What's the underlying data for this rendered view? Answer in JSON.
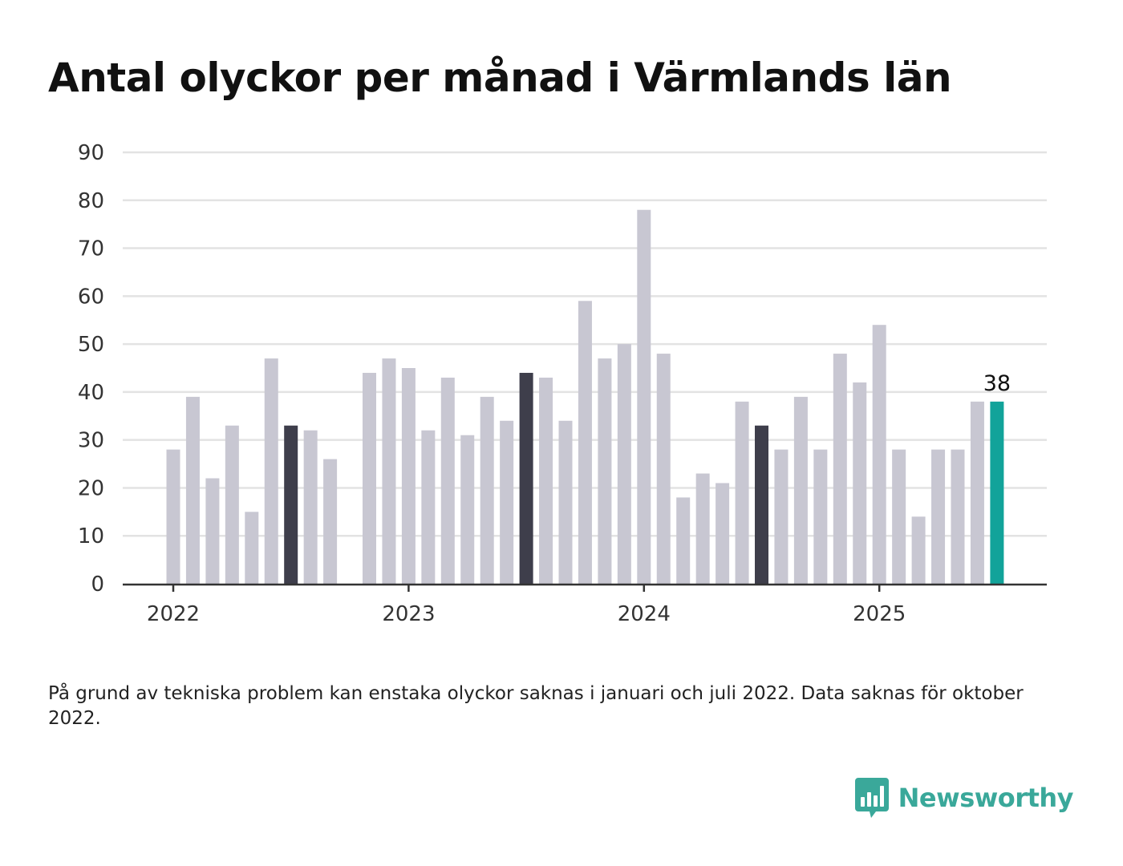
{
  "chart_data": {
    "type": "bar",
    "title": "Antal olyckor per månad i Värmlands län",
    "xlabel": "",
    "ylabel": "",
    "ylim": [
      0,
      90
    ],
    "yticks": [
      0,
      10,
      20,
      30,
      40,
      50,
      60,
      70,
      80,
      90
    ],
    "x_tick_labels": [
      "2022",
      "2023",
      "2024",
      "2025"
    ],
    "grid": true,
    "legend": "none",
    "categories": [
      "2022-01",
      "2022-02",
      "2022-03",
      "2022-04",
      "2022-05",
      "2022-06",
      "2022-07",
      "2022-08",
      "2022-09",
      "2022-10",
      "2022-11",
      "2022-12",
      "2023-01",
      "2023-02",
      "2023-03",
      "2023-04",
      "2023-05",
      "2023-06",
      "2023-07",
      "2023-08",
      "2023-09",
      "2023-10",
      "2023-11",
      "2023-12",
      "2024-01",
      "2024-02",
      "2024-03",
      "2024-04",
      "2024-05",
      "2024-06",
      "2024-07",
      "2024-08",
      "2024-09",
      "2024-10",
      "2024-11",
      "2024-12",
      "2025-01",
      "2025-02",
      "2025-03",
      "2025-04",
      "2025-05",
      "2025-06",
      "2025-07"
    ],
    "values": [
      28,
      39,
      22,
      33,
      15,
      47,
      33,
      32,
      26,
      null,
      44,
      47,
      45,
      32,
      43,
      31,
      39,
      34,
      44,
      43,
      34,
      59,
      47,
      50,
      78,
      48,
      18,
      23,
      21,
      38,
      33,
      28,
      39,
      28,
      48,
      42,
      54,
      28,
      14,
      28,
      28,
      38,
      38
    ],
    "highlight_months": [
      "2022-07",
      "2023-07",
      "2024-07"
    ],
    "latest_month": "2025-07",
    "data_labels": [
      {
        "category": "2025-07",
        "text": "38"
      }
    ],
    "colors": {
      "bar": "#c8c7d2",
      "highlight": "#3e3e4b",
      "latest": "#12a39a",
      "grid": "#e3e3e3",
      "axis": "#333333",
      "tick_text": "#333333"
    }
  },
  "footnote": "På grund av tekniska problem kan enstaka olyckor saknas i januari och juli 2022. Data saknas för oktober 2022.",
  "brand": {
    "name": "Newsworthy",
    "icon": "newsworthy-logo-icon",
    "color": "#3aa89a"
  }
}
